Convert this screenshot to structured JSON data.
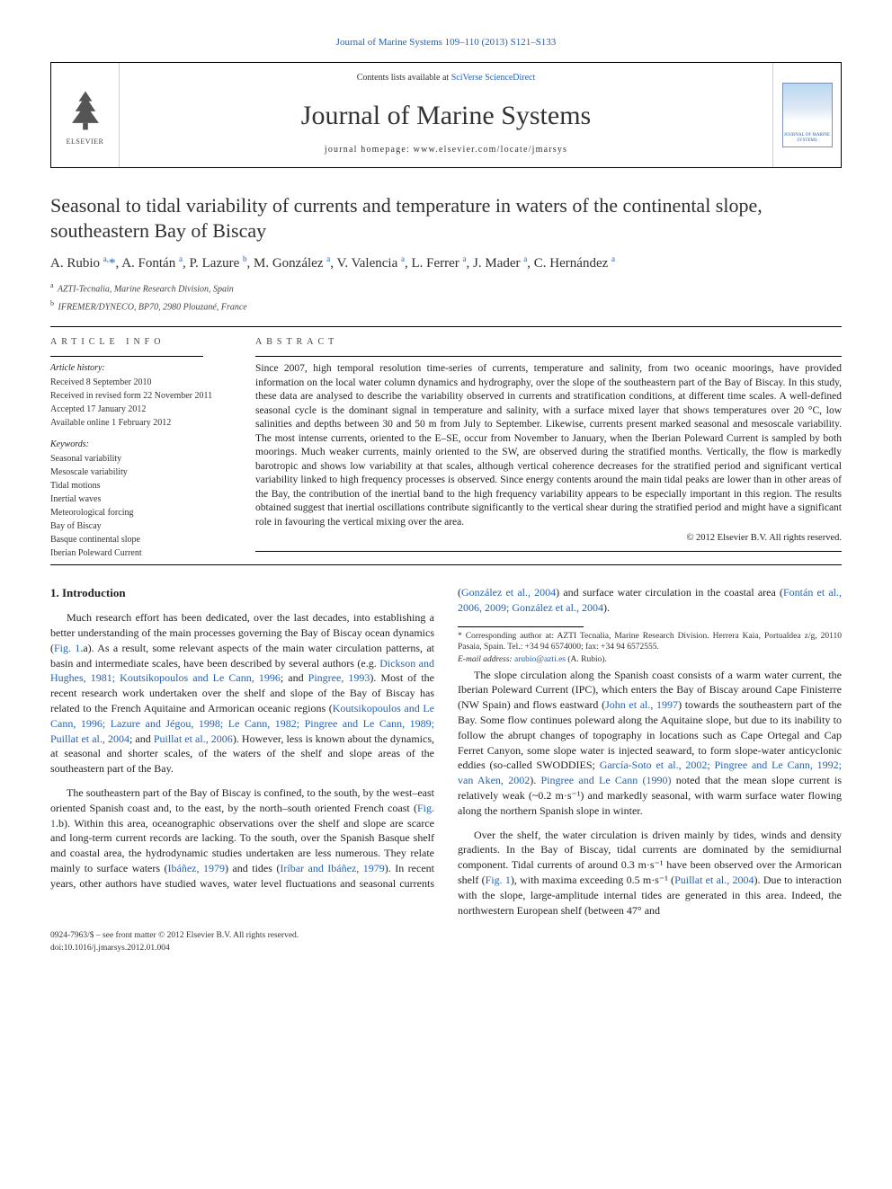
{
  "page": {
    "citation": "Journal of Marine Systems 109–110 (2013) S121–S133",
    "contents_prefix": "Contents lists available at ",
    "contents_link": "SciVerse ScienceDirect",
    "journal_title": "Journal of Marine Systems",
    "homepage_label": "journal homepage: www.elsevier.com/locate/jmarsys",
    "elsevier_label": "ELSEVIER",
    "thumb_label": "JOURNAL OF MARINE SYSTEMS"
  },
  "article": {
    "title": "Seasonal to tidal variability of currents and temperature in waters of the continental slope, southeastern Bay of Biscay",
    "authors_html": "A. Rubio <sup>a,</sup><span class='star'>*</span>, A. Fontán <sup>a</sup>, P. Lazure <sup>b</sup>, M. González <sup>a</sup>, V. Valencia <sup>a</sup>, L. Ferrer <sup>a</sup>, J. Mader <sup>a</sup>, C. Hernández <sup>a</sup>",
    "affiliations": [
      {
        "sup": "a",
        "text": "AZTI-Tecnalia, Marine Research Division, Spain"
      },
      {
        "sup": "b",
        "text": "IFREMER/DYNECO, BP70, 2980 Plouzané, France"
      }
    ]
  },
  "info": {
    "head": "ARTICLE INFO",
    "history_label": "Article history:",
    "history": [
      "Received 8 September 2010",
      "Received in revised form 22 November 2011",
      "Accepted 17 January 2012",
      "Available online 1 February 2012"
    ],
    "keywords_label": "Keywords:",
    "keywords": [
      "Seasonal variability",
      "Mesoscale variability",
      "Tidal motions",
      "Inertial waves",
      "Meteorological forcing",
      "Bay of Biscay",
      "Basque continental slope",
      "Iberian Poleward Current"
    ]
  },
  "abstract": {
    "head": "ABSTRACT",
    "text": "Since 2007, high temporal resolution time-series of currents, temperature and salinity, from two oceanic moorings, have provided information on the local water column dynamics and hydrography, over the slope of the southeastern part of the Bay of Biscay. In this study, these data are analysed to describe the variability observed in currents and stratification conditions, at different time scales. A well-defined seasonal cycle is the dominant signal in temperature and salinity, with a surface mixed layer that shows temperatures over 20 °C, low salinities and depths between 30 and 50 m from July to September. Likewise, currents present marked seasonal and mesoscale variability. The most intense currents, oriented to the E–SE, occur from November to January, when the Iberian Poleward Current is sampled by both moorings. Much weaker currents, mainly oriented to the SW, are observed during the stratified months. Vertically, the flow is markedly barotropic and shows low variability at that scales, although vertical coherence decreases for the stratified period and significant vertical variability linked to high frequency processes is observed. Since energy contents around the main tidal peaks are lower than in other areas of the Bay, the contribution of the inertial band to the high frequency variability appears to be especially important in this region. The results obtained suggest that inertial oscillations contribute significantly to the vertical shear during the stratified period and might have a significant role in favouring the vertical mixing over the area.",
    "copyright": "© 2012 Elsevier B.V. All rights reserved."
  },
  "body": {
    "section_heading": "1. Introduction",
    "p1_a": "Much research effort has been dedicated, over the last decades, into establishing a better understanding of the main processes governing the Bay of Biscay ocean dynamics (",
    "p1_fig": "Fig. 1",
    "p1_b": ".a). As a result, some relevant aspects of the main water circulation patterns, at basin and intermediate scales, have been described by several authors (e.g. ",
    "p1_ref1": "Dickson and Hughes, 1981; Koutsikopoulos and Le Cann, 1996",
    "p1_c": "; and ",
    "p1_ref2": "Pingree, 1993",
    "p1_d": "). Most of the recent research work undertaken over the shelf and slope of the Bay of Biscay has related to the French Aquitaine and Armorican oceanic regions (",
    "p1_ref3": "Koutsikopoulos and Le Cann, 1996; Lazure and Jégou, 1998; Le Cann, 1982; Pingree and Le Cann, 1989; Puillat et al., 2004",
    "p1_e": "; and ",
    "p1_ref4": "Puillat et al., 2006",
    "p1_f": "). However, less is known about the dynamics, at seasonal and shorter scales, of the waters of the shelf and slope areas of the southeastern part of the Bay.",
    "p2_a": "The southeastern part of the Bay of Biscay is confined, to the south, by the west–east oriented Spanish coast and, to the east, by the north–south oriented French coast (",
    "p2_fig": "Fig. 1",
    "p2_b": ".b). Within this area, oceanographic observations over the shelf and slope are scarce and long-term current records are lacking. To the south, over the Spanish Basque shelf and coastal area, the hydrodynamic studies undertaken are less numerous. They relate mainly to surface waters (",
    "p2_ref1": "Ibáñez, 1979",
    "p2_c": ") and tides (",
    "p2_ref2": "Iríbar and Ibáñez, 1979",
    "p2_d": "). In recent years, other authors have studied waves, water level fluctuations and seasonal currents (",
    "p2_ref3": "González et al., 2004",
    "p2_e": ") and surface water circulation in the coastal area (",
    "p2_ref4": "Fontán et al., 2006, 2009; González et al., 2004",
    "p2_f": ").",
    "p3_a": "The slope circulation along the Spanish coast consists of a warm water current, the Iberian Poleward Current (IPC), which enters the Bay of Biscay around Cape Finisterre (NW Spain) and flows eastward (",
    "p3_ref1": "John et al., 1997",
    "p3_b": ") towards the southeastern part of the Bay. Some flow continues poleward along the Aquitaine slope, but due to its inability to follow the abrupt changes of topography in locations such as Cape Ortegal and Cap Ferret Canyon, some slope water is injected seaward, to form slope-water anticyclonic eddies (so-called SWODDIES; ",
    "p3_ref2": "García-Soto et al., 2002; Pingree and Le Cann, 1992; van Aken, 2002",
    "p3_c": "). ",
    "p3_ref3": "Pingree and Le Cann (1990)",
    "p3_d": " noted that the mean slope current is relatively weak (~0.2 m·s⁻¹) and markedly seasonal, with warm surface water flowing along the northern Spanish slope in winter.",
    "p4_a": "Over the shelf, the water circulation is driven mainly by tides, winds and density gradients. In the Bay of Biscay, tidal currents are dominated by the semidiurnal component. Tidal currents of around 0.3 m·s⁻¹ have been observed over the Armorican shelf (",
    "p4_fig": "Fig. 1",
    "p4_b": "), with maxima exceeding 0.5 m·s⁻¹ (",
    "p4_ref1": "Puillat et al., 2004",
    "p4_c": "). Due to interaction with the slope, large-amplitude internal tides are generated in this area. Indeed, the northwestern European shelf (between 47° and"
  },
  "footnotes": {
    "corr": "* Corresponding author at: AZTI Tecnalia, Marine Research Division. Herrera Kaia, Portualdea z/g, 20110 Pasaia, Spain. Tel.: +34 94 6574000; fax: +34 94 6572555.",
    "email_label": "E-mail address: ",
    "email": "arubio@azti.es",
    "email_suffix": " (A. Rubio)."
  },
  "footer": {
    "issn": "0924-7963/$ – see front matter © 2012 Elsevier B.V. All rights reserved.",
    "doi": "doi:10.1016/j.jmarsys.2012.01.004"
  },
  "colors": {
    "link": "#2462b5",
    "text": "#222222",
    "rule": "#000000"
  }
}
